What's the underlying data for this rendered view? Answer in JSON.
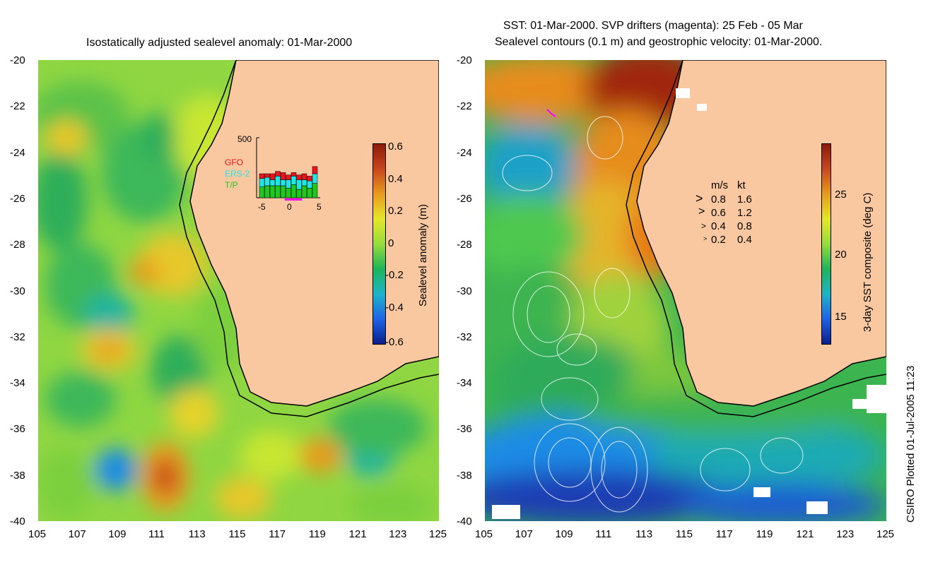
{
  "left_panel": {
    "title": "Isostatically adjusted sealevel anomaly: 01-Mar-2000",
    "colorbar": {
      "label": "Sealevel anomaly (m)",
      "ticks": [
        "0.6",
        "0.4",
        "0.2",
        "0",
        "-0.2",
        "-0.4",
        "-0.6"
      ]
    },
    "inset": {
      "y_tick": "500",
      "x_ticks": [
        "-5",
        "0",
        "5"
      ],
      "legend": [
        {
          "name": "GFO",
          "color": "#e8141e"
        },
        {
          "name": "ERS-2",
          "color": "#1ee6e6"
        },
        {
          "name": "T/P",
          "color": "#1ec81e"
        }
      ],
      "bars": [
        {
          "gfo": 40,
          "ers": 70,
          "tp": 90
        },
        {
          "gfo": 30,
          "ers": 70,
          "tp": 100
        },
        {
          "gfo": 50,
          "ers": 50,
          "tp": 100
        },
        {
          "gfo": 40,
          "ers": 80,
          "tp": 100
        },
        {
          "gfo": 60,
          "ers": 50,
          "tp": 100
        },
        {
          "gfo": 40,
          "ers": 70,
          "tp": 80
        },
        {
          "gfo": 30,
          "ers": 70,
          "tp": 110
        },
        {
          "gfo": 40,
          "ers": 80,
          "tp": 70
        },
        {
          "gfo": 50,
          "ers": 50,
          "tp": 100
        },
        {
          "gfo": 40,
          "ers": 60,
          "tp": 80
        },
        {
          "gfo": 60,
          "ers": 80,
          "tp": 120
        }
      ]
    }
  },
  "right_panel": {
    "title_line1": "SST: 01-Mar-2000. SVP drifters (magenta): 25 Feb - 05 Mar",
    "title_line2": "Sealevel contours (0.1 m) and geostrophic velocity: 01-Mar-2000.",
    "colorbar": {
      "label": "3-day SST composite (deg C)",
      "ticks": [
        "25",
        "20",
        "15"
      ]
    },
    "velocity_legend": {
      "header_ms": "m/s",
      "header_kt": "kt",
      "rows": [
        {
          "ms": "0.8",
          "kt": "1.6"
        },
        {
          "ms": "0.6",
          "kt": "1.2"
        },
        {
          "ms": "0.4",
          "kt": "0.8"
        },
        {
          "ms": "0.2",
          "kt": "0.4"
        }
      ]
    }
  },
  "axes": {
    "lat_ticks": [
      "-20",
      "-22",
      "-24",
      "-26",
      "-28",
      "-30",
      "-32",
      "-34",
      "-36",
      "-38",
      "-40"
    ],
    "lon_ticks": [
      "105",
      "107",
      "109",
      "111",
      "113",
      "115",
      "117",
      "119",
      "121",
      "123",
      "125"
    ]
  },
  "credit": "CSIRO Plotted 01-Jul-2005 11:23",
  "colors": {
    "land": "#fac8a0",
    "coast": "#000000"
  }
}
